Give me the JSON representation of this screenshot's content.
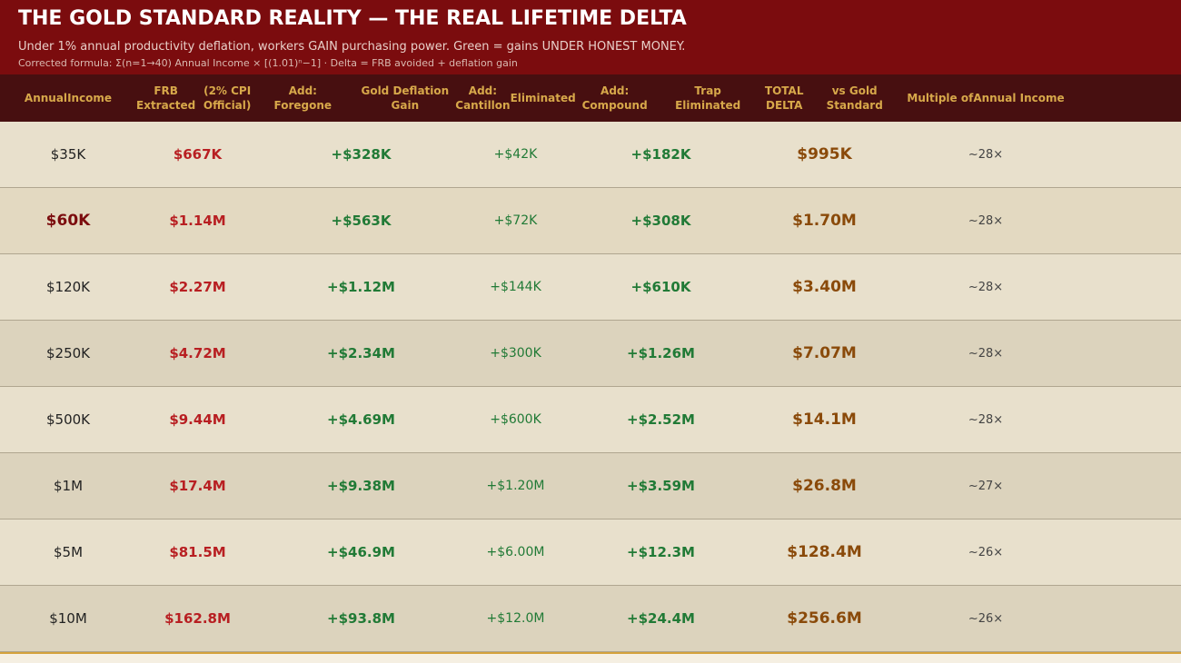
{
  "header": {
    "title": "THE GOLD STANDARD REALITY — THE REAL LIFETIME DELTA",
    "subtitle": "Under 1% annual productivity deflation, workers GAIN purchasing power. Green = gains UNDER HONEST MONEY.",
    "formula": "Corrected formula: Σ(n=1→40) Annual Income × [(1.01)ⁿ−1]   ·   Delta = FRB avoided + deflation gain"
  },
  "columns": [
    [
      "Annual",
      "Income"
    ],
    [
      "FRB Extracted",
      "(2% CPI Official)"
    ],
    [
      "Add: Foregone",
      "Gold Deflation Gain"
    ],
    [
      "Add: Cantillon",
      "Eliminated"
    ],
    [
      "Add: Compound",
      "Trap Eliminated"
    ],
    [
      "TOTAL DELTA",
      "vs Gold Standard"
    ],
    [
      "Multiple of",
      "Annual Income"
    ]
  ],
  "rows": [
    [
      "$35K",
      "$667K",
      "+$328K",
      "+$42K",
      "+$182K",
      "$995K",
      "~28×"
    ],
    [
      "$60K",
      "$1.14M",
      "+$563K",
      "+$72K",
      "+$308K",
      "$1.70M",
      "~28×"
    ],
    [
      "$120K",
      "$2.27M",
      "+$1.12M",
      "+$144K",
      "+$610K",
      "$3.40M",
      "~28×"
    ],
    [
      "$250K",
      "$4.72M",
      "+$2.34M",
      "+$300K",
      "+$1.26M",
      "$7.07M",
      "~28×"
    ],
    [
      "$500K",
      "$9.44M",
      "+$4.69M",
      "+$600K",
      "+$2.52M",
      "$14.1M",
      "~28×"
    ],
    [
      "$1M",
      "$17.4M",
      "+$9.38M",
      "+$1.20M",
      "+$3.59M",
      "$26.8M",
      "~27×"
    ],
    [
      "$5M",
      "$81.5M",
      "+$46.9M",
      "+$6.00M",
      "+$12.3M",
      "$128.4M",
      "~26×"
    ],
    [
      "$10M",
      "$162.8M",
      "+$93.8M",
      "+$12.0M",
      "+$24.4M",
      "$256.6M",
      "~26×"
    ]
  ],
  "colors": {
    "header_bg": "#7b0c0e",
    "thead_bg": "#470f10",
    "frb": "#b81f22",
    "gain": "#217a36",
    "total": "#8a4a0a",
    "accent": "#d7a84a"
  }
}
